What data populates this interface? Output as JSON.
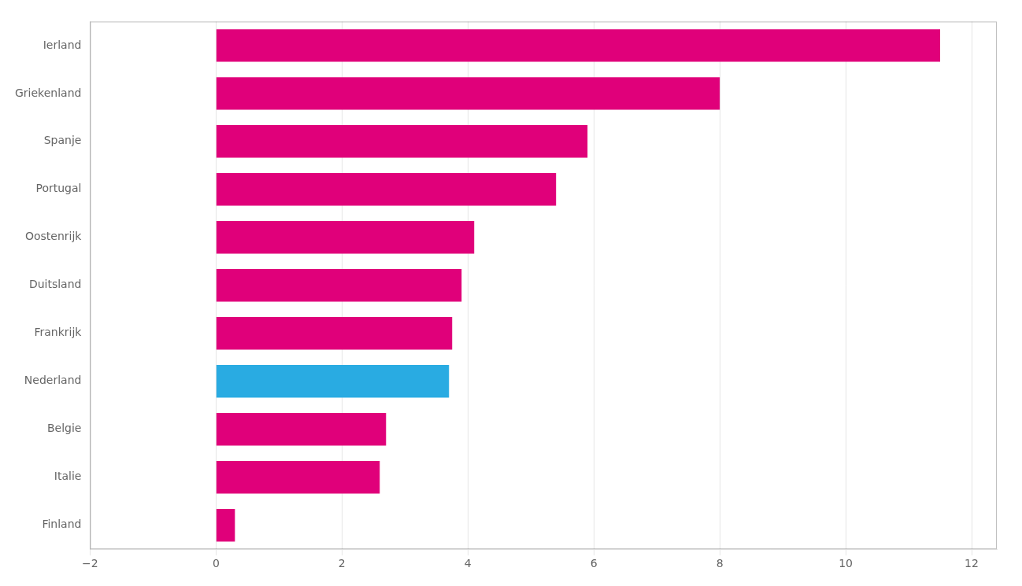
{
  "chart_data": {
    "type": "bar",
    "orientation": "horizontal",
    "categories": [
      "Ierland",
      "Griekenland",
      "Spanje",
      "Portugal",
      "Oostenrijk",
      "Duitsland",
      "Frankrijk",
      "Nederland",
      "Belgie",
      "Italie",
      "Finland"
    ],
    "values": [
      11.5,
      8.0,
      5.9,
      5.4,
      4.1,
      3.9,
      3.75,
      3.7,
      2.7,
      2.6,
      0.3
    ],
    "colors": [
      "#E0007A",
      "#E0007A",
      "#E0007A",
      "#E0007A",
      "#E0007A",
      "#E0007A",
      "#E0007A",
      "#29ABE2",
      "#E0007A",
      "#E0007A",
      "#E0007A"
    ],
    "xlim": [
      -2,
      12.4
    ],
    "xticks": [
      {
        "value": -2,
        "label": "−2"
      },
      0,
      2,
      4,
      6,
      8,
      10,
      12
    ],
    "grid": true
  }
}
